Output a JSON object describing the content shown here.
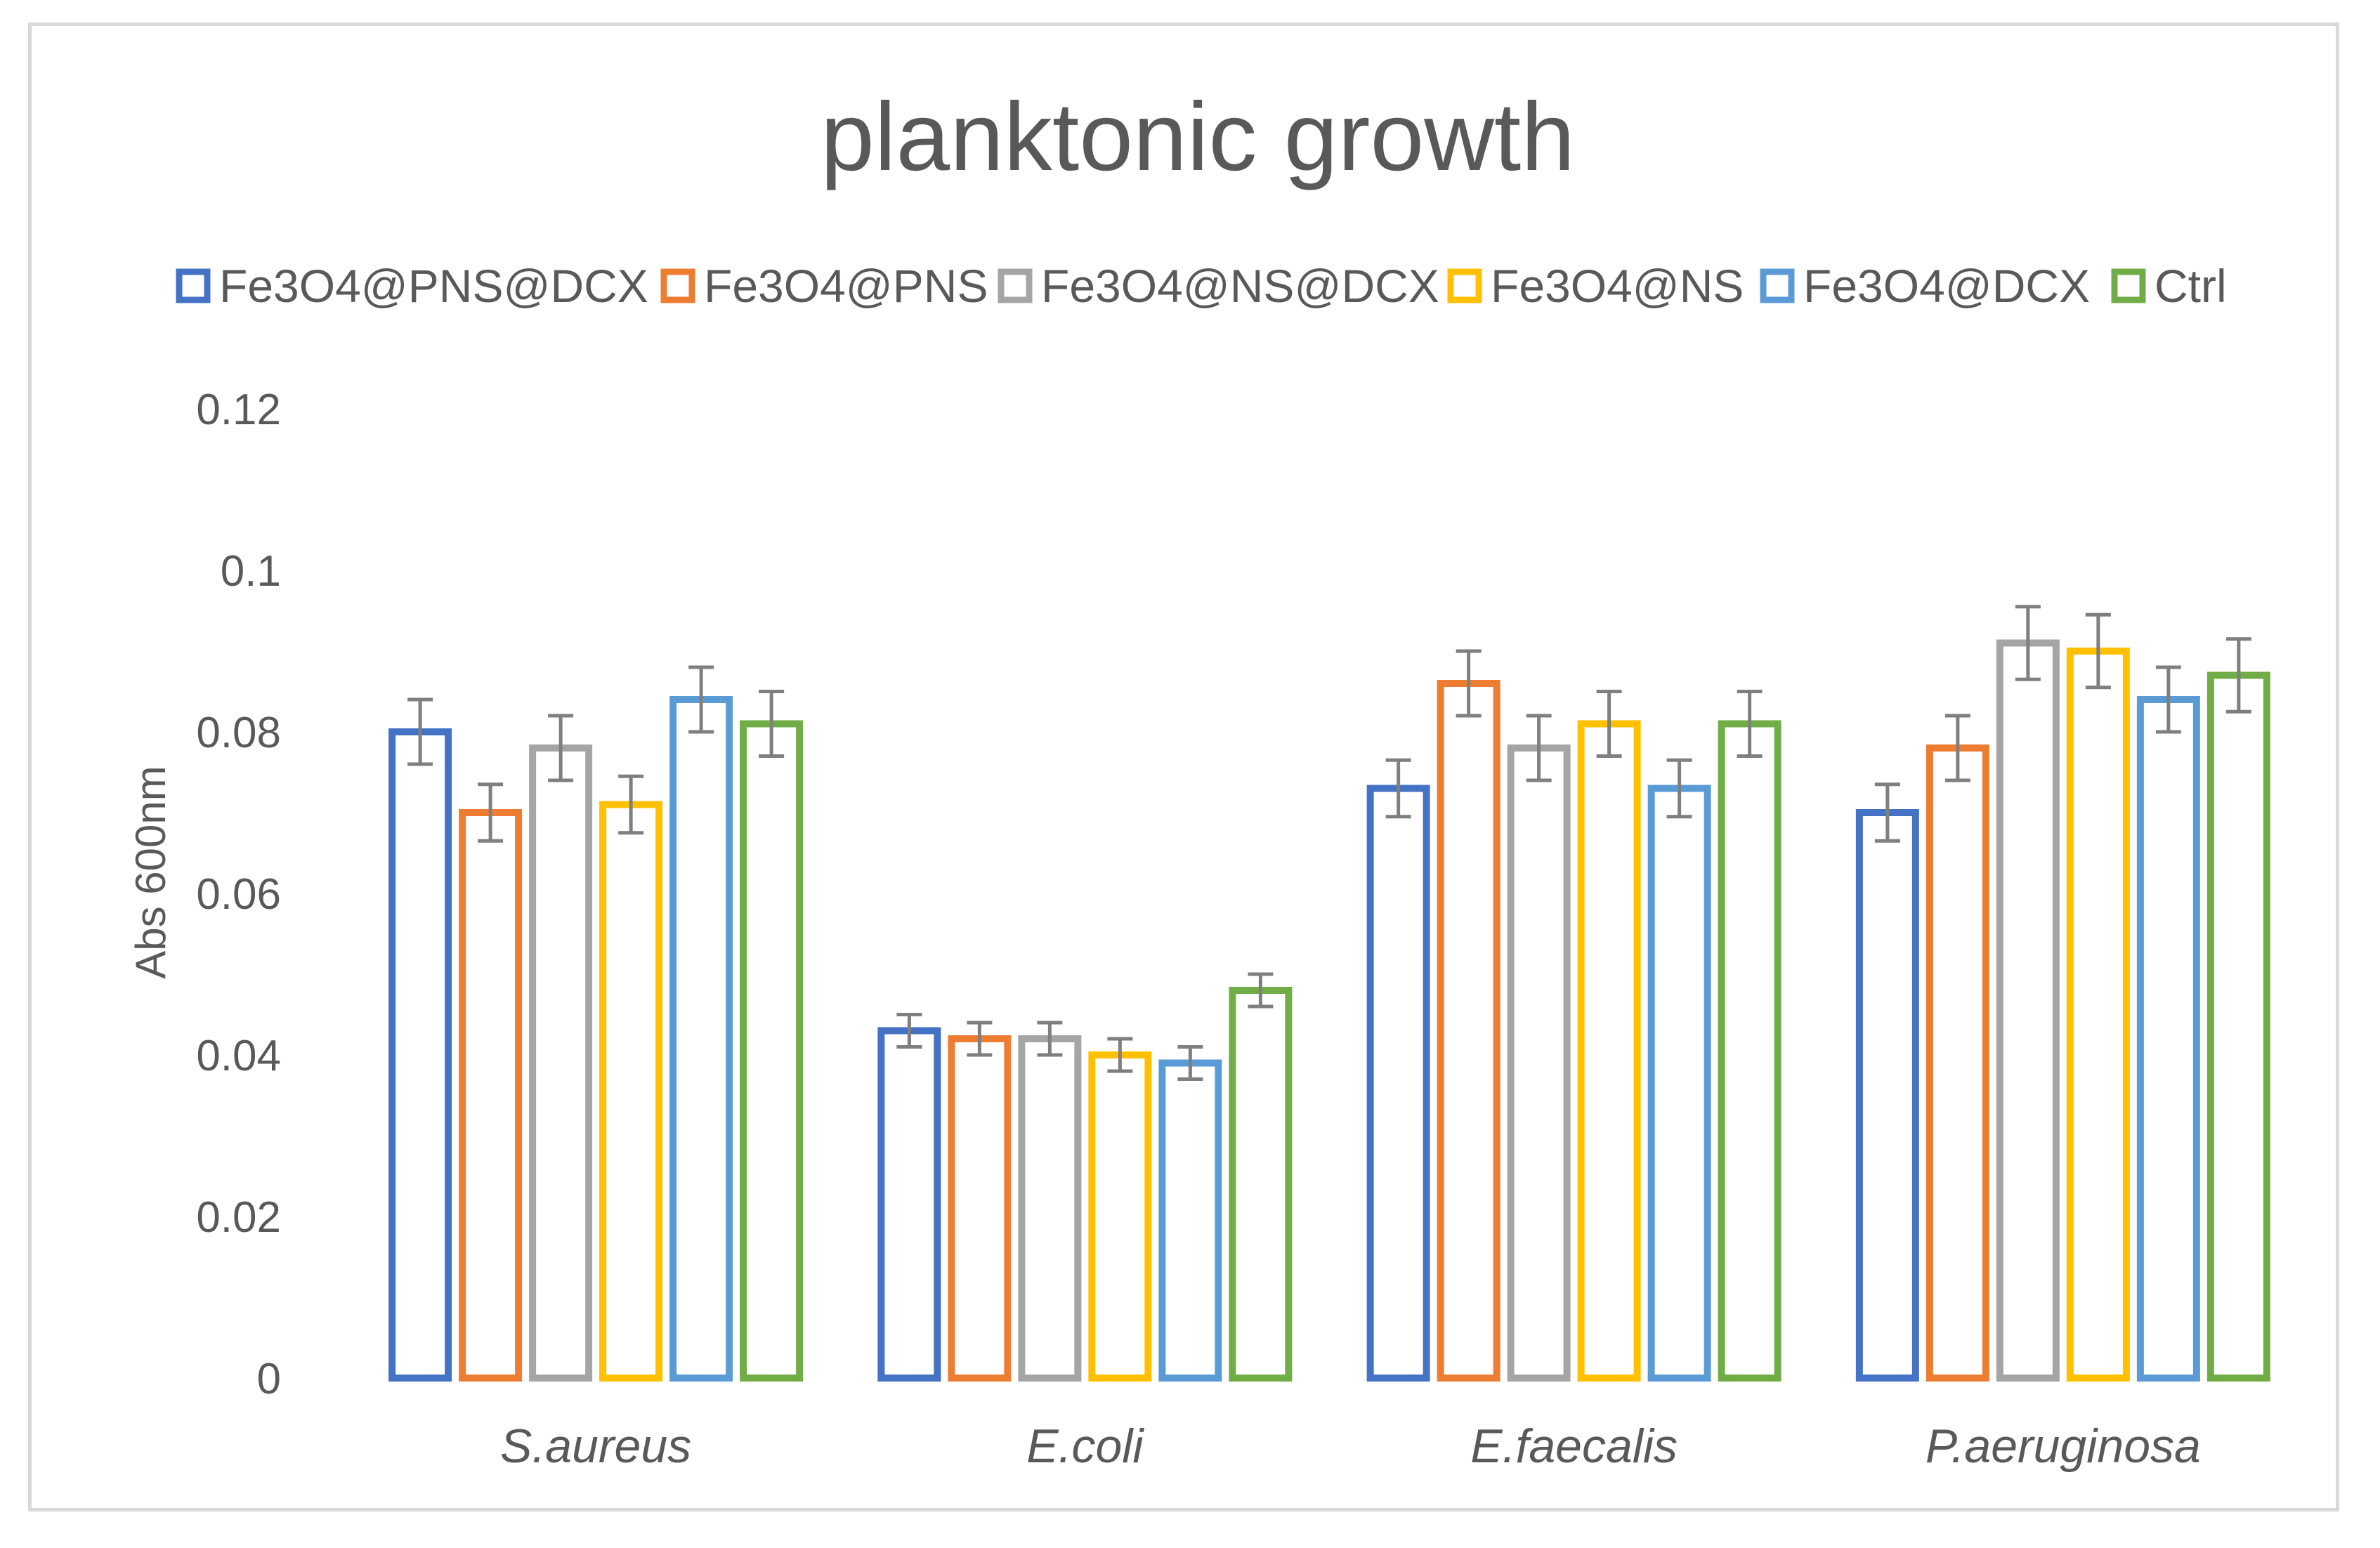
{
  "chart_data": {
    "type": "bar",
    "title": "planktonic growth",
    "xlabel": "",
    "ylabel": "Abs 600nm",
    "ylim": [
      0,
      0.12
    ],
    "y_ticks": [
      "0",
      "0.02",
      "0.04",
      "0.06",
      "0.08",
      "0.1",
      "0.12"
    ],
    "y_tick_values": [
      0,
      0.02,
      0.04,
      0.06,
      0.08,
      0.1,
      0.12
    ],
    "grid": false,
    "legend_position": "top",
    "categories": [
      "S.aureus",
      "E.coli",
      "E.faecalis",
      "P.aeruginosa"
    ],
    "series": [
      {
        "name": "Fe3O4@PNS@DCX",
        "color": "#4472c4",
        "values": [
          0.08,
          0.043,
          0.073,
          0.07
        ],
        "errors": [
          0.004,
          0.002,
          0.0035,
          0.0035
        ]
      },
      {
        "name": "Fe3O4@PNS",
        "color": "#ed7d31",
        "values": [
          0.07,
          0.042,
          0.086,
          0.078
        ],
        "errors": [
          0.0035,
          0.002,
          0.004,
          0.004
        ]
      },
      {
        "name": "Fe3O4@NS@DCX",
        "color": "#a5a5a5",
        "values": [
          0.078,
          0.042,
          0.078,
          0.091
        ],
        "errors": [
          0.004,
          0.002,
          0.004,
          0.0045
        ]
      },
      {
        "name": "Fe3O4@NS",
        "color": "#ffc000",
        "values": [
          0.071,
          0.04,
          0.081,
          0.09
        ],
        "errors": [
          0.0035,
          0.002,
          0.004,
          0.0045
        ]
      },
      {
        "name": "Fe3O4@DCX",
        "color": "#5b9bd5",
        "values": [
          0.084,
          0.039,
          0.073,
          0.084
        ],
        "errors": [
          0.004,
          0.002,
          0.0035,
          0.004
        ]
      },
      {
        "name": "Ctrl",
        "color": "#70ad47",
        "values": [
          0.081,
          0.048,
          0.081,
          0.087
        ],
        "errors": [
          0.004,
          0.002,
          0.004,
          0.0045
        ]
      }
    ]
  }
}
